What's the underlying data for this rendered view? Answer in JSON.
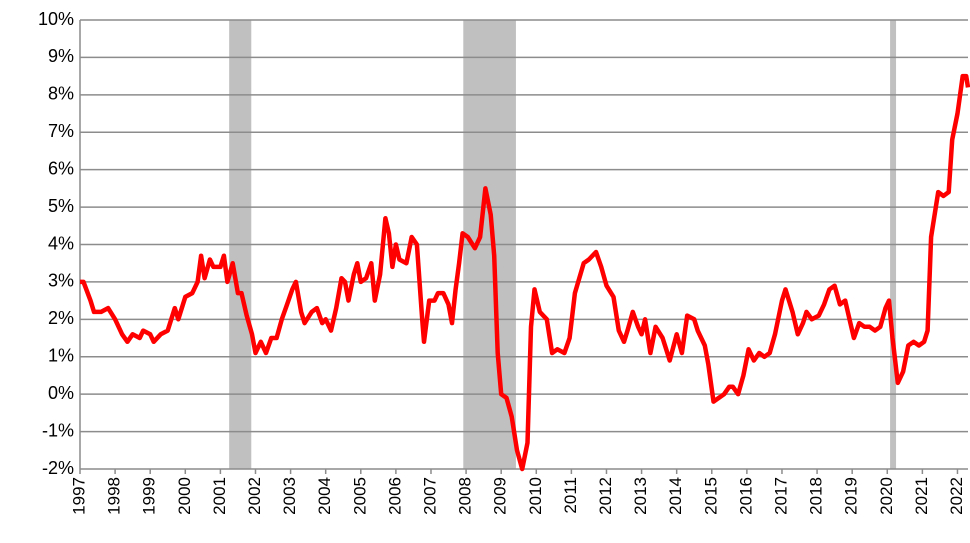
{
  "chart_data": {
    "type": "line",
    "color": "#ff0000",
    "x": [
      1997.0,
      1997.1,
      1997.3,
      1997.4,
      1997.6,
      1997.8,
      1998.0,
      1998.2,
      1998.35,
      1998.5,
      1998.7,
      1998.8,
      1999.0,
      1999.1,
      1999.3,
      1999.5,
      1999.7,
      1999.8,
      2000.0,
      2000.2,
      2000.35,
      2000.45,
      2000.55,
      2000.7,
      2000.8,
      2001.0,
      2001.1,
      2001.2,
      2001.35,
      2001.5,
      2001.6,
      2001.75,
      2001.9,
      2002.0,
      2002.15,
      2002.3,
      2002.45,
      2002.6,
      2002.75,
      2002.9,
      2003.05,
      2003.15,
      2003.3,
      2003.4,
      2003.6,
      2003.75,
      2003.9,
      2004.0,
      2004.15,
      2004.3,
      2004.45,
      2004.55,
      2004.65,
      2004.8,
      2004.9,
      2005.0,
      2005.15,
      2005.3,
      2005.4,
      2005.55,
      2005.7,
      2005.8,
      2005.9,
      2006.0,
      2006.1,
      2006.3,
      2006.45,
      2006.6,
      2006.75,
      2006.8,
      2006.95,
      2007.1,
      2007.2,
      2007.35,
      2007.5,
      2007.6,
      2007.7,
      2007.8,
      2007.9,
      2008.05,
      2008.25,
      2008.4,
      2008.55,
      2008.7,
      2008.8,
      2008.9,
      2009.0,
      2009.15,
      2009.3,
      2009.45,
      2009.6,
      2009.75,
      2009.85,
      2009.95,
      2010.1,
      2010.3,
      2010.45,
      2010.6,
      2010.8,
      2010.95,
      2011.1,
      2011.35,
      2011.5,
      2011.7,
      2011.85,
      2012.0,
      2012.2,
      2012.35,
      2012.5,
      2012.6,
      2012.75,
      2012.9,
      2013.0,
      2013.1,
      2013.25,
      2013.4,
      2013.6,
      2013.7,
      2013.8,
      2014.0,
      2014.15,
      2014.3,
      2014.5,
      2014.6,
      2014.8,
      2014.9,
      2015.05,
      2015.2,
      2015.35,
      2015.5,
      2015.6,
      2015.75,
      2015.9,
      2016.05,
      2016.2,
      2016.35,
      2016.5,
      2016.65,
      2016.8,
      2017.0,
      2017.1,
      2017.3,
      2017.45,
      2017.6,
      2017.7,
      2017.85,
      2018.05,
      2018.2,
      2018.35,
      2018.5,
      2018.65,
      2018.8,
      2018.95,
      2019.05,
      2019.2,
      2019.35,
      2019.5,
      2019.65,
      2019.8,
      2019.95,
      2020.05,
      2020.15,
      2020.3,
      2020.45,
      2020.6,
      2020.75,
      2020.9,
      2021.05,
      2021.15,
      2021.25,
      2021.45,
      2021.6,
      2021.75,
      2021.85,
      2022.0,
      2022.15,
      2022.25,
      2022.3
    ],
    "values": [
      3.0,
      3.0,
      2.5,
      2.2,
      2.2,
      2.3,
      2.0,
      1.6,
      1.4,
      1.6,
      1.5,
      1.7,
      1.6,
      1.4,
      1.6,
      1.7,
      2.3,
      2.0,
      2.6,
      2.7,
      3.0,
      3.7,
      3.1,
      3.6,
      3.4,
      3.4,
      3.7,
      3.0,
      3.5,
      2.7,
      2.7,
      2.1,
      1.6,
      1.1,
      1.4,
      1.1,
      1.5,
      1.5,
      2.0,
      2.4,
      2.8,
      3.0,
      2.2,
      1.9,
      2.2,
      2.3,
      1.9,
      2.0,
      1.7,
      2.3,
      3.1,
      3.0,
      2.5,
      3.2,
      3.5,
      3.0,
      3.1,
      3.5,
      2.5,
      3.2,
      4.7,
      4.3,
      3.4,
      4.0,
      3.6,
      3.5,
      4.2,
      4.0,
      2.0,
      1.4,
      2.5,
      2.5,
      2.7,
      2.7,
      2.4,
      1.9,
      2.8,
      3.5,
      4.3,
      4.2,
      3.9,
      4.2,
      5.5,
      4.8,
      3.7,
      1.1,
      0.0,
      -0.1,
      -0.6,
      -1.5,
      -2.0,
      -1.3,
      1.8,
      2.8,
      2.2,
      2.0,
      1.1,
      1.2,
      1.1,
      1.5,
      2.7,
      3.5,
      3.6,
      3.8,
      3.4,
      2.9,
      2.6,
      1.7,
      1.4,
      1.7,
      2.2,
      1.8,
      1.6,
      2.0,
      1.1,
      1.8,
      1.5,
      1.2,
      0.9,
      1.6,
      1.1,
      2.1,
      2.0,
      1.7,
      1.3,
      0.8,
      -0.2,
      -0.1,
      0.0,
      0.2,
      0.2,
      0.0,
      0.5,
      1.2,
      0.9,
      1.1,
      1.0,
      1.1,
      1.6,
      2.5,
      2.8,
      2.2,
      1.6,
      1.9,
      2.2,
      2.0,
      2.1,
      2.4,
      2.8,
      2.9,
      2.4,
      2.5,
      1.9,
      1.5,
      1.9,
      1.8,
      1.8,
      1.7,
      1.8,
      2.3,
      2.5,
      1.5,
      0.3,
      0.6,
      1.3,
      1.4,
      1.3,
      1.4,
      1.7,
      4.2,
      5.4,
      5.3,
      5.4,
      6.8,
      7.5,
      8.5,
      8.5,
      8.2
    ],
    "shaded": [
      [
        2001.25,
        2001.88
      ],
      [
        2007.92,
        2009.42
      ],
      [
        2020.08,
        2020.25
      ]
    ],
    "shade_color": "#c0c0c0",
    "xlim": [
      1997,
      2022.3
    ],
    "xticks": [
      1997,
      1998,
      1999,
      2000,
      2001,
      2002,
      2003,
      2004,
      2005,
      2006,
      2007,
      2008,
      2009,
      2010,
      2011,
      2012,
      2013,
      2014,
      2015,
      2016,
      2017,
      2018,
      2019,
      2020,
      2021,
      2022
    ],
    "ylim": [
      -2,
      10
    ],
    "yticks": [
      {
        "value": -2,
        "label": "-2%"
      },
      {
        "value": -1,
        "label": "-1%"
      },
      {
        "value": 0,
        "label": "0%"
      },
      {
        "value": 1,
        "label": "1%"
      },
      {
        "value": 2,
        "label": "2%"
      },
      {
        "value": 3,
        "label": "3%"
      },
      {
        "value": 4,
        "label": "4%"
      },
      {
        "value": 5,
        "label": "5%"
      },
      {
        "value": 6,
        "label": "6%"
      },
      {
        "value": 7,
        "label": "7%"
      },
      {
        "value": 8,
        "label": "8%"
      },
      {
        "value": 9,
        "label": "9%"
      },
      {
        "value": 10,
        "label": "10%"
      }
    ],
    "grid": true
  }
}
